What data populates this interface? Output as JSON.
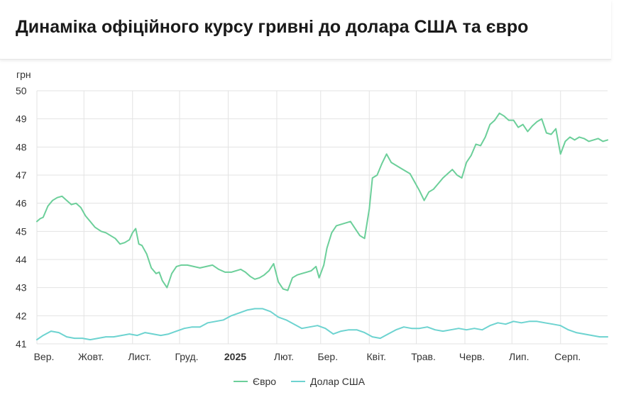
{
  "header": {
    "title": "Динаміка офіційного курсу гривні до долара США та євро"
  },
  "colors": {
    "euro": "#6ccf9a",
    "usd": "#6dd3d0",
    "grid": "#e3e3e3",
    "text": "#333333"
  },
  "chart_data": {
    "type": "line",
    "title": "Динаміка офіційного курсу гривні до долара США та євро",
    "ylabel": "грн",
    "ylim": [
      41,
      50
    ],
    "yticks": [
      "50",
      "49",
      "48",
      "47",
      "46",
      "45",
      "44",
      "43",
      "42",
      "41"
    ],
    "xlim": [
      "2024-09-01",
      "2025-08-31"
    ],
    "xticks": [
      {
        "date": "2024-09-01",
        "label": "Вер.",
        "bold": false
      },
      {
        "date": "2024-10-01",
        "label": "Жовт.",
        "bold": false
      },
      {
        "date": "2024-11-01",
        "label": "Лист.",
        "bold": false
      },
      {
        "date": "2024-12-01",
        "label": "Груд.",
        "bold": false
      },
      {
        "date": "2025-01-01",
        "label": "2025",
        "bold": true
      },
      {
        "date": "2025-02-01",
        "label": "Лют.",
        "bold": false
      },
      {
        "date": "2025-03-01",
        "label": "Бер.",
        "bold": false
      },
      {
        "date": "2025-04-01",
        "label": "Квіт.",
        "bold": false
      },
      {
        "date": "2025-05-01",
        "label": "Трав.",
        "bold": false
      },
      {
        "date": "2025-06-01",
        "label": "Черв.",
        "bold": false
      },
      {
        "date": "2025-07-01",
        "label": "Лип.",
        "bold": false
      },
      {
        "date": "2025-08-01",
        "label": "Серп.",
        "bold": false
      }
    ],
    "grid": true,
    "legend_position": "bottom",
    "series": [
      {
        "name": "Євро",
        "color": "#6ccf9a",
        "x": [
          "2024-09-01",
          "2024-09-03",
          "2024-09-05",
          "2024-09-08",
          "2024-09-11",
          "2024-09-14",
          "2024-09-17",
          "2024-09-20",
          "2024-09-23",
          "2024-09-26",
          "2024-09-29",
          "2024-10-02",
          "2024-10-05",
          "2024-10-08",
          "2024-10-12",
          "2024-10-15",
          "2024-10-18",
          "2024-10-21",
          "2024-10-24",
          "2024-10-27",
          "2024-10-30",
          "2024-11-01",
          "2024-11-03",
          "2024-11-05",
          "2024-11-07",
          "2024-11-10",
          "2024-11-13",
          "2024-11-16",
          "2024-11-18",
          "2024-11-20",
          "2024-11-23",
          "2024-11-26",
          "2024-11-29",
          "2024-12-02",
          "2024-12-06",
          "2024-12-10",
          "2024-12-14",
          "2024-12-18",
          "2024-12-22",
          "2024-12-26",
          "2024-12-30",
          "2025-01-03",
          "2025-01-06",
          "2025-01-09",
          "2025-01-12",
          "2025-01-15",
          "2025-01-18",
          "2025-01-21",
          "2025-01-24",
          "2025-01-27",
          "2025-01-30",
          "2025-02-02",
          "2025-02-05",
          "2025-02-08",
          "2025-02-11",
          "2025-02-14",
          "2025-02-17",
          "2025-02-20",
          "2025-02-23",
          "2025-02-26",
          "2025-02-28",
          "2025-03-03",
          "2025-03-05",
          "2025-03-08",
          "2025-03-11",
          "2025-03-14",
          "2025-03-17",
          "2025-03-20",
          "2025-03-23",
          "2025-03-26",
          "2025-03-29",
          "2025-04-01",
          "2025-04-03",
          "2025-04-06",
          "2025-04-09",
          "2025-04-12",
          "2025-04-15",
          "2025-04-18",
          "2025-04-21",
          "2025-04-24",
          "2025-04-27",
          "2025-04-30",
          "2025-05-03",
          "2025-05-06",
          "2025-05-09",
          "2025-05-12",
          "2025-05-15",
          "2025-05-18",
          "2025-05-21",
          "2025-05-24",
          "2025-05-27",
          "2025-05-30",
          "2025-06-02",
          "2025-06-05",
          "2025-06-08",
          "2025-06-11",
          "2025-06-14",
          "2025-06-17",
          "2025-06-20",
          "2025-06-23",
          "2025-06-26",
          "2025-06-29",
          "2025-07-02",
          "2025-07-05",
          "2025-07-08",
          "2025-07-11",
          "2025-07-14",
          "2025-07-17",
          "2025-07-20",
          "2025-07-23",
          "2025-07-26",
          "2025-07-29",
          "2025-08-01",
          "2025-08-04",
          "2025-08-07",
          "2025-08-10",
          "2025-08-13",
          "2025-08-16",
          "2025-08-19",
          "2025-08-22",
          "2025-08-25",
          "2025-08-28",
          "2025-08-31"
        ],
        "values": [
          45.35,
          45.45,
          45.5,
          45.9,
          46.1,
          46.2,
          46.25,
          46.1,
          45.95,
          46.0,
          45.85,
          45.55,
          45.35,
          45.15,
          45.0,
          44.95,
          44.85,
          44.75,
          44.55,
          44.6,
          44.7,
          44.95,
          45.1,
          44.55,
          44.5,
          44.2,
          43.7,
          43.5,
          43.55,
          43.25,
          43.0,
          43.5,
          43.75,
          43.8,
          43.8,
          43.75,
          43.7,
          43.75,
          43.8,
          43.65,
          43.55,
          43.55,
          43.6,
          43.65,
          43.55,
          43.4,
          43.3,
          43.35,
          43.45,
          43.6,
          43.85,
          43.2,
          42.95,
          42.9,
          43.35,
          43.45,
          43.5,
          43.55,
          43.6,
          43.75,
          43.35,
          43.8,
          44.4,
          44.95,
          45.2,
          45.25,
          45.3,
          45.35,
          45.1,
          44.85,
          44.75,
          45.8,
          46.9,
          47.0,
          47.4,
          47.75,
          47.45,
          47.35,
          47.25,
          47.15,
          47.05,
          46.75,
          46.45,
          46.1,
          46.4,
          46.5,
          46.7,
          46.9,
          47.05,
          47.2,
          47.0,
          46.9,
          47.45,
          47.7,
          48.1,
          48.05,
          48.35,
          48.8,
          48.95,
          49.2,
          49.1,
          48.95,
          48.95,
          48.7,
          48.8,
          48.55,
          48.75,
          48.9,
          49.0,
          48.5,
          48.45,
          48.65,
          47.75,
          48.2,
          48.35,
          48.25,
          48.35,
          48.3,
          48.2,
          48.25,
          48.3,
          48.2,
          48.25
        ]
      },
      {
        "name": "Долар США",
        "color": "#6dd3d0",
        "x": [
          "2024-09-01",
          "2024-09-05",
          "2024-09-10",
          "2024-09-15",
          "2024-09-20",
          "2024-09-25",
          "2024-09-30",
          "2024-10-05",
          "2024-10-10",
          "2024-10-15",
          "2024-10-20",
          "2024-10-25",
          "2024-10-30",
          "2024-11-04",
          "2024-11-09",
          "2024-11-14",
          "2024-11-19",
          "2024-11-24",
          "2024-11-29",
          "2024-12-04",
          "2024-12-09",
          "2024-12-14",
          "2024-12-19",
          "2024-12-24",
          "2024-12-29",
          "2025-01-03",
          "2025-01-08",
          "2025-01-13",
          "2025-01-18",
          "2025-01-23",
          "2025-01-28",
          "2025-02-02",
          "2025-02-07",
          "2025-02-12",
          "2025-02-17",
          "2025-02-22",
          "2025-02-27",
          "2025-03-04",
          "2025-03-09",
          "2025-03-14",
          "2025-03-19",
          "2025-03-24",
          "2025-03-29",
          "2025-04-03",
          "2025-04-08",
          "2025-04-13",
          "2025-04-18",
          "2025-04-23",
          "2025-04-28",
          "2025-05-03",
          "2025-05-08",
          "2025-05-13",
          "2025-05-18",
          "2025-05-23",
          "2025-05-28",
          "2025-06-02",
          "2025-06-07",
          "2025-06-12",
          "2025-06-17",
          "2025-06-22",
          "2025-06-27",
          "2025-07-02",
          "2025-07-07",
          "2025-07-12",
          "2025-07-17",
          "2025-07-22",
          "2025-07-27",
          "2025-08-01",
          "2025-08-06",
          "2025-08-11",
          "2025-08-16",
          "2025-08-21",
          "2025-08-26",
          "2025-08-31"
        ],
        "values": [
          41.15,
          41.3,
          41.45,
          41.4,
          41.25,
          41.2,
          41.2,
          41.15,
          41.2,
          41.25,
          41.25,
          41.3,
          41.35,
          41.3,
          41.4,
          41.35,
          41.3,
          41.35,
          41.45,
          41.55,
          41.6,
          41.6,
          41.75,
          41.8,
          41.85,
          42.0,
          42.1,
          42.2,
          42.25,
          42.25,
          42.15,
          41.95,
          41.85,
          41.7,
          41.55,
          41.6,
          41.65,
          41.55,
          41.35,
          41.45,
          41.5,
          41.5,
          41.4,
          41.25,
          41.2,
          41.35,
          41.5,
          41.6,
          41.55,
          41.55,
          41.6,
          41.5,
          41.45,
          41.5,
          41.55,
          41.5,
          41.55,
          41.5,
          41.65,
          41.75,
          41.7,
          41.8,
          41.75,
          41.8,
          41.8,
          41.75,
          41.7,
          41.65,
          41.5,
          41.4,
          41.35,
          41.3,
          41.25,
          41.25
        ]
      }
    ]
  }
}
